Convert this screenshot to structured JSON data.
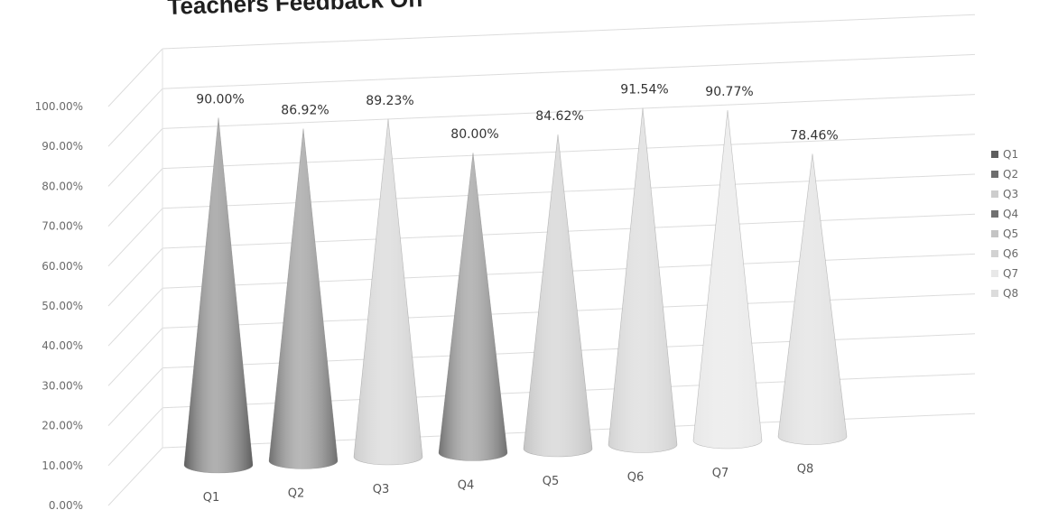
{
  "chart_data": {
    "type": "bar",
    "style": "3d-cone",
    "title": "Teachers Feedback On",
    "categories": [
      "Q1",
      "Q2",
      "Q3",
      "Q4",
      "Q5",
      "Q6",
      "Q7",
      "Q8"
    ],
    "values": [
      90.0,
      86.92,
      89.23,
      80.0,
      84.62,
      91.54,
      90.77,
      78.46
    ],
    "data_labels": [
      "90.00%",
      "86.92%",
      "89.23%",
      "80.00%",
      "84.62%",
      "91.54%",
      "90.77%",
      "78.46%"
    ],
    "y_ticks": [
      "0.00%",
      "10.00%",
      "20.00%",
      "30.00%",
      "40.00%",
      "50.00%",
      "60.00%",
      "70.00%",
      "80.00%",
      "90.00%",
      "100.00%"
    ],
    "ylim": [
      0,
      100
    ],
    "grid": true,
    "legend": {
      "placement": "right",
      "entries": [
        "Q1",
        "Q2",
        "Q3",
        "Q4",
        "Q5",
        "Q6",
        "Q7",
        "Q8"
      ]
    },
    "colors": [
      "#5e5e5e",
      "#6e6e6e",
      "#cdcdcd",
      "#707070",
      "#c4c4c4",
      "#d2d2d2",
      "#e8e8e8",
      "#dcdcdc"
    ]
  }
}
